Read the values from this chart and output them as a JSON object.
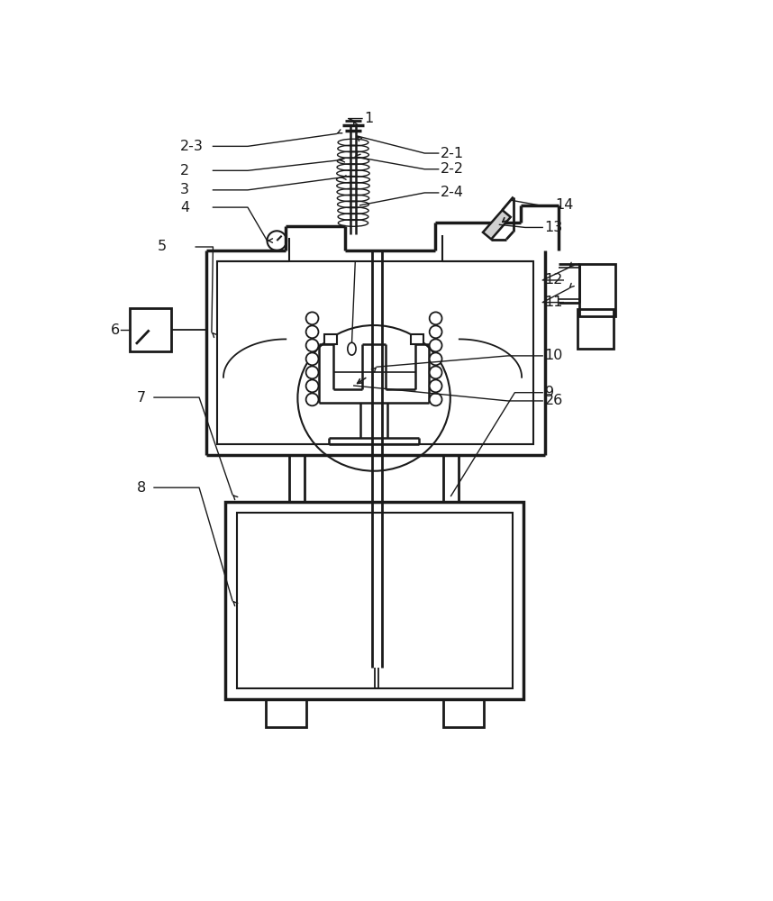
{
  "bg_color": "#ffffff",
  "lc": "#1a1a1a",
  "figsize": [
    8.58,
    10.0
  ],
  "dpi": 100,
  "fs": 11.5
}
